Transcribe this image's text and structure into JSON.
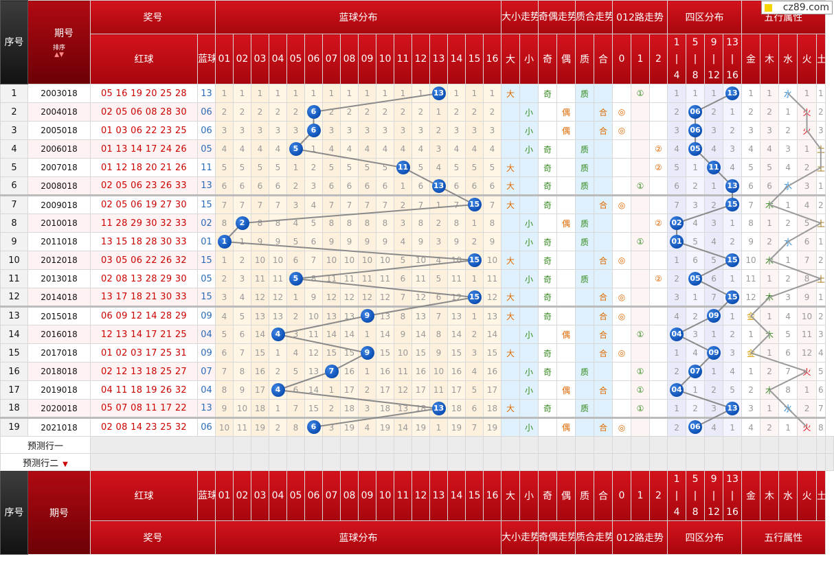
{
  "logo": "cz89.com",
  "header": {
    "seq": "序号",
    "period": "期号",
    "sort": "排序",
    "prize": "奖号",
    "red": "红球",
    "blue": "蓝球",
    "blue_dist": "蓝球分布",
    "size_trend": "大小走势",
    "parity_trend": "奇偶走势",
    "prime_trend": "质合走势",
    "road_trend": "012路走势",
    "zone_dist": "四区分布",
    "wuxing": "五行属性",
    "nums": [
      "01",
      "02",
      "03",
      "04",
      "05",
      "06",
      "07",
      "08",
      "09",
      "10",
      "11",
      "12",
      "13",
      "14",
      "15",
      "16"
    ],
    "size": [
      "大",
      "小"
    ],
    "parity": [
      "奇",
      "偶"
    ],
    "prime": [
      "质",
      "合"
    ],
    "road": [
      "0",
      "1",
      "2"
    ],
    "zones": [
      [
        "1",
        "|",
        "4"
      ],
      [
        "5",
        "|",
        "8"
      ],
      [
        "9",
        "|",
        "12"
      ],
      [
        "13",
        "|",
        "16"
      ]
    ],
    "elements": [
      "金",
      "木",
      "水",
      "火",
      "土"
    ]
  },
  "rows": [
    {
      "no": "1",
      "period": "2003018",
      "red": "05 16 19 20 25 28",
      "blue": "13",
      "cells": [
        "1",
        "1",
        "1",
        "1",
        "1",
        "1",
        "1",
        "1",
        "1",
        "1",
        "1",
        "1",
        "13",
        "1",
        "1",
        "1"
      ],
      "size": [
        "大",
        ""
      ],
      "parity": [
        "奇",
        ""
      ],
      "prime": [
        "质",
        ""
      ],
      "road": [
        "",
        "①",
        ""
      ],
      "zones": [
        "1",
        "1",
        "1",
        "13"
      ],
      "wx": [
        "1",
        "1",
        "水",
        "1",
        "1"
      ]
    },
    {
      "no": "2",
      "period": "2004018",
      "red": "02 05 06 08 28 30",
      "blue": "06",
      "cells": [
        "2",
        "2",
        "2",
        "2",
        "2",
        "6",
        "2",
        "2",
        "2",
        "2",
        "2",
        "2",
        "1",
        "2",
        "2",
        "2"
      ],
      "size": [
        "",
        "小"
      ],
      "parity": [
        "",
        "偶"
      ],
      "prime": [
        "",
        "合"
      ],
      "road": [
        "◎",
        "",
        ""
      ],
      "zones": [
        "2",
        "06",
        "2",
        "1"
      ],
      "wx": [
        "2",
        "2",
        "1",
        "火",
        "2"
      ]
    },
    {
      "no": "3",
      "period": "2005018",
      "red": "01 03 06 22 23 25",
      "blue": "06",
      "cells": [
        "3",
        "3",
        "3",
        "3",
        "3",
        "6",
        "3",
        "3",
        "3",
        "3",
        "3",
        "3",
        "2",
        "3",
        "3",
        "3"
      ],
      "size": [
        "",
        "小"
      ],
      "parity": [
        "",
        "偶"
      ],
      "prime": [
        "",
        "合"
      ],
      "road": [
        "◎",
        "",
        ""
      ],
      "zones": [
        "3",
        "06",
        "3",
        "2"
      ],
      "wx": [
        "3",
        "3",
        "2",
        "火",
        "3"
      ]
    },
    {
      "no": "4",
      "period": "2006018",
      "red": "01 13 14 17 24 26",
      "blue": "05",
      "cells": [
        "4",
        "4",
        "4",
        "4",
        "5",
        "1",
        "4",
        "4",
        "4",
        "4",
        "4",
        "4",
        "3",
        "4",
        "4",
        "4"
      ],
      "size": [
        "",
        "小"
      ],
      "parity": [
        "奇",
        ""
      ],
      "prime": [
        "质",
        ""
      ],
      "road": [
        "",
        "",
        "②"
      ],
      "zones": [
        "4",
        "05",
        "4",
        "3"
      ],
      "wx": [
        "4",
        "4",
        "3",
        "1",
        "土"
      ]
    },
    {
      "no": "5",
      "period": "2007018",
      "red": "01 12 18 20 21 26",
      "blue": "11",
      "cells": [
        "5",
        "5",
        "5",
        "5",
        "1",
        "2",
        "5",
        "5",
        "5",
        "5",
        "11",
        "5",
        "4",
        "5",
        "5",
        "5"
      ],
      "size": [
        "大",
        ""
      ],
      "parity": [
        "奇",
        ""
      ],
      "prime": [
        "质",
        ""
      ],
      "road": [
        "",
        "",
        "②"
      ],
      "zones": [
        "5",
        "1",
        "11",
        "4"
      ],
      "wx": [
        "5",
        "5",
        "4",
        "2",
        "土"
      ]
    },
    {
      "no": "6",
      "period": "2008018",
      "red": "02 05 06 23 26 33",
      "blue": "13",
      "cells": [
        "6",
        "6",
        "6",
        "6",
        "2",
        "3",
        "6",
        "6",
        "6",
        "6",
        "1",
        "6",
        "13",
        "6",
        "6",
        "6"
      ],
      "size": [
        "大",
        ""
      ],
      "parity": [
        "奇",
        ""
      ],
      "prime": [
        "质",
        ""
      ],
      "road": [
        "",
        "①",
        ""
      ],
      "zones": [
        "6",
        "2",
        "1",
        "13"
      ],
      "wx": [
        "6",
        "6",
        "水",
        "3",
        "1"
      ]
    },
    {
      "no": "7",
      "period": "2009018",
      "red": "02 05 06 19 27 30",
      "blue": "15",
      "cells": [
        "7",
        "7",
        "7",
        "7",
        "3",
        "4",
        "7",
        "7",
        "7",
        "7",
        "2",
        "7",
        "1",
        "7",
        "15",
        "7"
      ],
      "size": [
        "大",
        ""
      ],
      "parity": [
        "奇",
        ""
      ],
      "prime": [
        "",
        "合"
      ],
      "road": [
        "◎",
        "",
        ""
      ],
      "zones": [
        "7",
        "3",
        "2",
        "15"
      ],
      "wx": [
        "7",
        "木",
        "1",
        "4",
        "2"
      ]
    },
    {
      "no": "8",
      "period": "2010018",
      "red": "11 28 29 30 32 33",
      "blue": "02",
      "cells": [
        "8",
        "2",
        "8",
        "8",
        "4",
        "5",
        "8",
        "8",
        "8",
        "8",
        "3",
        "8",
        "2",
        "8",
        "1",
        "8"
      ],
      "size": [
        "",
        "小"
      ],
      "parity": [
        "",
        "偶"
      ],
      "prime": [
        "质",
        ""
      ],
      "road": [
        "",
        "",
        "②"
      ],
      "zones": [
        "02",
        "4",
        "3",
        "1"
      ],
      "wx": [
        "8",
        "1",
        "2",
        "5",
        "土"
      ]
    },
    {
      "no": "9",
      "period": "2011018",
      "red": "13 15 18 28 30 33",
      "blue": "01",
      "cells": [
        "1",
        "1",
        "9",
        "9",
        "5",
        "6",
        "9",
        "9",
        "9",
        "9",
        "4",
        "9",
        "3",
        "9",
        "2",
        "9"
      ],
      "size": [
        "",
        "小"
      ],
      "parity": [
        "奇",
        ""
      ],
      "prime": [
        "质",
        ""
      ],
      "road": [
        "",
        "①",
        ""
      ],
      "zones": [
        "01",
        "5",
        "4",
        "2"
      ],
      "wx": [
        "9",
        "2",
        "水",
        "6",
        "1"
      ]
    },
    {
      "no": "10",
      "period": "2012018",
      "red": "03 05 06 22 26 32",
      "blue": "15",
      "cells": [
        "1",
        "2",
        "10",
        "10",
        "6",
        "7",
        "10",
        "10",
        "10",
        "10",
        "5",
        "10",
        "4",
        "10",
        "15",
        "10"
      ],
      "size": [
        "大",
        ""
      ],
      "parity": [
        "奇",
        ""
      ],
      "prime": [
        "",
        "合"
      ],
      "road": [
        "◎",
        "",
        ""
      ],
      "zones": [
        "1",
        "6",
        "5",
        "15"
      ],
      "wx": [
        "10",
        "木",
        "1",
        "7",
        "2"
      ]
    },
    {
      "no": "11",
      "period": "2013018",
      "red": "02 08 13 28 29 30",
      "blue": "05",
      "cells": [
        "2",
        "3",
        "11",
        "11",
        "5",
        "8",
        "11",
        "11",
        "11",
        "11",
        "6",
        "11",
        "5",
        "11",
        "1",
        "11"
      ],
      "size": [
        "",
        "小"
      ],
      "parity": [
        "奇",
        ""
      ],
      "prime": [
        "质",
        ""
      ],
      "road": [
        "",
        "",
        "②"
      ],
      "zones": [
        "2",
        "05",
        "6",
        "1"
      ],
      "wx": [
        "11",
        "1",
        "2",
        "8",
        "土"
      ]
    },
    {
      "no": "12",
      "period": "2014018",
      "red": "13 17 18 21 30 33",
      "blue": "15",
      "cells": [
        "3",
        "4",
        "12",
        "12",
        "1",
        "9",
        "12",
        "12",
        "12",
        "12",
        "7",
        "12",
        "6",
        "12",
        "15",
        "12"
      ],
      "size": [
        "大",
        ""
      ],
      "parity": [
        "奇",
        ""
      ],
      "prime": [
        "",
        "合"
      ],
      "road": [
        "◎",
        "",
        ""
      ],
      "zones": [
        "3",
        "1",
        "7",
        "15"
      ],
      "wx": [
        "12",
        "木",
        "3",
        "9",
        "1"
      ]
    },
    {
      "no": "13",
      "period": "2015018",
      "red": "06 09 12 14 28 29",
      "blue": "09",
      "cells": [
        "4",
        "5",
        "13",
        "13",
        "2",
        "10",
        "13",
        "13",
        "9",
        "13",
        "8",
        "13",
        "7",
        "13",
        "1",
        "13"
      ],
      "size": [
        "大",
        ""
      ],
      "parity": [
        "奇",
        ""
      ],
      "prime": [
        "",
        "合"
      ],
      "road": [
        "◎",
        "",
        ""
      ],
      "zones": [
        "4",
        "2",
        "09",
        "1"
      ],
      "wx": [
        "金",
        "1",
        "4",
        "10",
        "2"
      ]
    },
    {
      "no": "14",
      "period": "2016018",
      "red": "12 13 14 17 21 25",
      "blue": "04",
      "cells": [
        "5",
        "6",
        "14",
        "4",
        "3",
        "11",
        "14",
        "14",
        "1",
        "14",
        "9",
        "14",
        "8",
        "14",
        "2",
        "14"
      ],
      "size": [
        "",
        "小"
      ],
      "parity": [
        "",
        "偶"
      ],
      "prime": [
        "",
        "合"
      ],
      "road": [
        "",
        "①",
        ""
      ],
      "zones": [
        "04",
        "3",
        "1",
        "2"
      ],
      "wx": [
        "1",
        "木",
        "5",
        "11",
        "3"
      ]
    },
    {
      "no": "15",
      "period": "2017018",
      "red": "01 02 03 17 25 31",
      "blue": "09",
      "cells": [
        "6",
        "7",
        "15",
        "1",
        "4",
        "12",
        "15",
        "15",
        "9",
        "15",
        "10",
        "15",
        "9",
        "15",
        "3",
        "15"
      ],
      "size": [
        "大",
        ""
      ],
      "parity": [
        "奇",
        ""
      ],
      "prime": [
        "",
        "合"
      ],
      "road": [
        "◎",
        "",
        ""
      ],
      "zones": [
        "1",
        "4",
        "09",
        "3"
      ],
      "wx": [
        "金",
        "1",
        "6",
        "12",
        "4"
      ]
    },
    {
      "no": "16",
      "period": "2018018",
      "red": "02 12 13 18 25 27",
      "blue": "07",
      "cells": [
        "7",
        "8",
        "16",
        "2",
        "5",
        "13",
        "7",
        "16",
        "1",
        "16",
        "11",
        "16",
        "10",
        "16",
        "4",
        "16"
      ],
      "size": [
        "",
        "小"
      ],
      "parity": [
        "奇",
        ""
      ],
      "prime": [
        "质",
        ""
      ],
      "road": [
        "",
        "①",
        ""
      ],
      "zones": [
        "2",
        "07",
        "1",
        "4"
      ],
      "wx": [
        "1",
        "2",
        "7",
        "火",
        "5"
      ]
    },
    {
      "no": "17",
      "period": "2019018",
      "red": "04 11 18 19 26 32",
      "blue": "04",
      "cells": [
        "8",
        "9",
        "17",
        "4",
        "6",
        "14",
        "1",
        "17",
        "2",
        "17",
        "12",
        "17",
        "11",
        "17",
        "5",
        "17"
      ],
      "size": [
        "",
        "小"
      ],
      "parity": [
        "",
        "偶"
      ],
      "prime": [
        "",
        "合"
      ],
      "road": [
        "",
        "①",
        ""
      ],
      "zones": [
        "04",
        "1",
        "2",
        "5"
      ],
      "wx": [
        "2",
        "木",
        "8",
        "1",
        "6"
      ]
    },
    {
      "no": "18",
      "period": "2020018",
      "red": "05 07 08 11 17 22",
      "blue": "13",
      "cells": [
        "9",
        "10",
        "18",
        "1",
        "7",
        "15",
        "2",
        "18",
        "3",
        "18",
        "13",
        "18",
        "13",
        "18",
        "6",
        "18"
      ],
      "size": [
        "大",
        ""
      ],
      "parity": [
        "奇",
        ""
      ],
      "prime": [
        "质",
        ""
      ],
      "road": [
        "",
        "①",
        ""
      ],
      "zones": [
        "1",
        "2",
        "3",
        "13"
      ],
      "wx": [
        "3",
        "1",
        "水",
        "2",
        "7"
      ]
    },
    {
      "no": "19",
      "period": "2021018",
      "red": "02 08 14 23 25 32",
      "blue": "06",
      "cells": [
        "10",
        "11",
        "19",
        "2",
        "8",
        "6",
        "3",
        "19",
        "4",
        "19",
        "14",
        "19",
        "1",
        "19",
        "7",
        "19"
      ],
      "size": [
        "",
        "小"
      ],
      "parity": [
        "",
        "偶"
      ],
      "prime": [
        "",
        "合"
      ],
      "road": [
        "◎",
        "",
        ""
      ],
      "zones": [
        "2",
        "06",
        "4",
        "1"
      ],
      "wx": [
        "4",
        "2",
        "1",
        "火",
        "8"
      ]
    }
  ],
  "predict": [
    "预测行一",
    "预测行二"
  ]
}
